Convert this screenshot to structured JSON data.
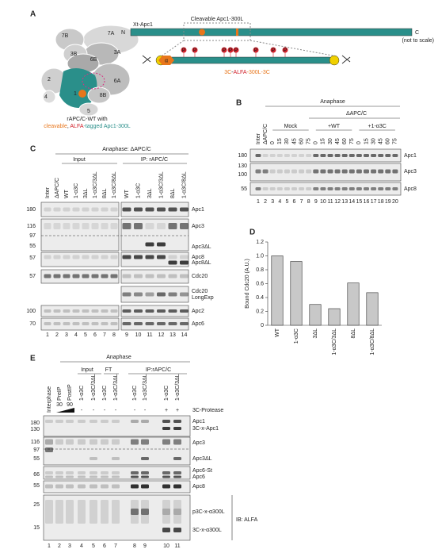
{
  "panel_a": {
    "label": "A",
    "subunits": [
      "7A",
      "7B",
      "3B",
      "3A",
      "6B",
      "6A",
      "2",
      "1",
      "4",
      "5",
      "8B"
    ],
    "caption": "rAPC/C-WT with",
    "caption_parts": [
      "cleavable",
      ", ",
      "ALFA",
      "-tagged Apc1-300L"
    ],
    "construct_name": "Xt-Apc1",
    "n_term": "N",
    "c_term": "C",
    "cleavable": "Cleavable Apc1-300L",
    "scale_note": "(not to scale)",
    "alpha": "α",
    "phospho": "P",
    "tag_parts": [
      "3C",
      "-",
      "ALFA",
      "-300L-",
      "3C"
    ]
  },
  "panel_b": {
    "label": "B",
    "anaphase": "Anaphase",
    "depleted": "ΔAPC/C",
    "groups": [
      "Mock",
      "+WT",
      "+1-α3C"
    ],
    "lane_headers": [
      "Inter",
      "ΔAPC/C"
    ],
    "times": [
      "0",
      "15",
      "30",
      "45",
      "60",
      "75"
    ],
    "mw": [
      "180",
      "130",
      "100",
      "55"
    ],
    "proteins": [
      "Apc1",
      "Apc3",
      "Apc8"
    ],
    "lanes": [
      "1",
      "2",
      "3",
      "4",
      "5",
      "6",
      "7",
      "8",
      "9",
      "10",
      "11",
      "12",
      "13",
      "14",
      "15",
      "16",
      "17",
      "18",
      "19",
      "20"
    ]
  },
  "panel_c": {
    "label": "C",
    "title": "Anaphase: ΔAPC/C",
    "input": "Input",
    "ip": "IP: rAPC/C",
    "input_headers": [
      "Inter",
      "ΔAPC/C",
      "WT",
      "1-α3C",
      "3ΔL",
      "1-α3C/3ΔL",
      "8ΔL",
      "1-α3C/8ΔL"
    ],
    "ip_headers": [
      "WT",
      "1-α3C",
      "3ΔL",
      "1-α3C/3ΔL",
      "8ΔL",
      "1-α3C/8ΔL"
    ],
    "mw": [
      "180",
      "116",
      "97",
      "55",
      "57",
      "57",
      "100",
      "70"
    ],
    "proteins": [
      "Apc1",
      "Apc3",
      "Apc3ΔL",
      "Apc8",
      "Apc8ΔL",
      "Cdc20",
      "Cdc20",
      "LongExp",
      "Apc2",
      "Apc6"
    ],
    "lanes": [
      "1",
      "2",
      "3",
      "4",
      "5",
      "6",
      "7",
      "8",
      "9",
      "10",
      "11",
      "12",
      "13",
      "14"
    ]
  },
  "chart_data": {
    "type": "bar",
    "panel_label": "D",
    "y_label": "Bound Cdc20 (A.U.)",
    "categories": [
      "WT",
      "1-α3C",
      "3ΔL",
      "1-α3C/3ΔL",
      "8ΔL",
      "1-α3C/8ΔL"
    ],
    "label_colors": [
      "#222222",
      "#2a8f8a",
      "#222222",
      "#2a8f8a",
      "#222222",
      "#2a8f8a"
    ],
    "values": [
      1.0,
      0.92,
      0.3,
      0.24,
      0.61,
      0.47
    ],
    "color": "#c8c8c8",
    "ylim": [
      0,
      1.2
    ],
    "yticks": [
      0,
      0.2,
      0.4,
      0.6,
      0.8,
      {
        "value": 1,
        "label": "1.0"
      },
      1.2
    ]
  },
  "panel_e": {
    "label": "E",
    "anaphase": "Anaphase",
    "headers": [
      "Interphase",
      "PreIP",
      "PostIP"
    ],
    "times": [
      "30",
      "90"
    ],
    "input": "Input",
    "ft": "FT",
    "ip": "IP:rAPC/C",
    "lane_headers": [
      "1-α3C",
      "1-α3C/3ΔL"
    ],
    "protease": "3C-Protease",
    "signs": [
      "-",
      "-",
      "-",
      "-",
      "-",
      "-",
      "+",
      "+"
    ],
    "mw": [
      "180",
      "130",
      "116",
      "97",
      "55",
      "66",
      "55",
      "25",
      "15"
    ],
    "proteins": [
      "Apc1",
      "3C-x-Apc1",
      "Apc3",
      "Apc3ΔL",
      "Apc6-St",
      "Apc6",
      "Apc8",
      "p3C-x-α300L",
      "3C-x-α300L"
    ],
    "ib": "IB: ALFA",
    "lanes": [
      "1",
      "2",
      "3",
      "4",
      "5",
      "6",
      "7",
      "8",
      "9",
      "10",
      "11"
    ]
  }
}
